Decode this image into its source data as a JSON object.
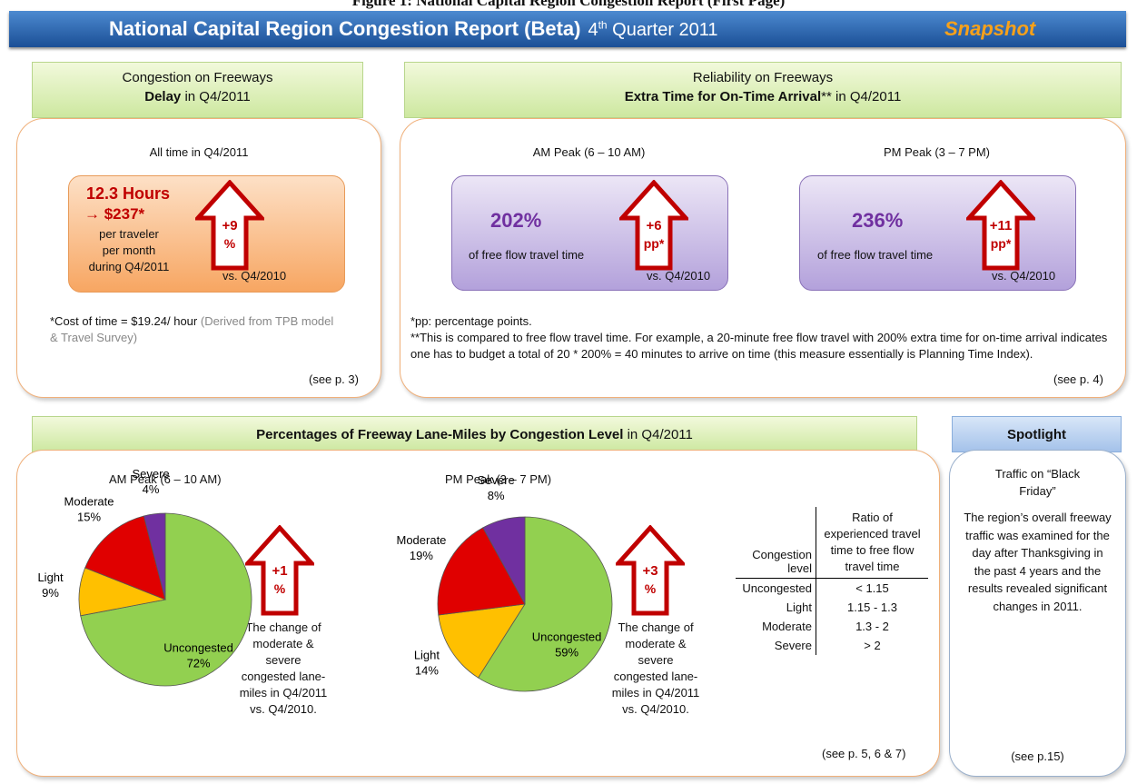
{
  "header": {
    "caption": "Figure 1: National Capital Region Congestion Report (First Page)",
    "title": "National Capital Region Congestion Report (Beta)",
    "quarter_number": "4",
    "quarter_suffix": "th",
    "quarter_rest": "Quarter 2011",
    "tag": "Snapshot"
  },
  "delay": {
    "heading": "Congestion on Freeways",
    "heading_bold": "Delay",
    "heading_rest": "in Q4/2011",
    "subtitle": "All time in Q4/2011",
    "hours": "12.3 Hours",
    "cost": "→ $237*",
    "desc": [
      "per traveler",
      "per month",
      "during Q4/2011"
    ],
    "change": "+9",
    "change_unit": "%",
    "vs": "vs. Q4/2010",
    "note": "*Cost of time = $19.24/ hour",
    "note_source": "(Derived from TPB model & Travel Survey)",
    "ref": "(see p. 3)"
  },
  "reliability": {
    "heading": "Reliability on Freeways",
    "heading_bold": "Extra Time for On-Time Arrival",
    "heading_mark": "**",
    "heading_rest": "in Q4/2011",
    "periods": [
      {
        "label": "AM Peak (6 – 10 AM)",
        "value": "202%",
        "desc": "of free flow travel time",
        "change": "+6",
        "change_unit": "pp*",
        "vs": "vs. Q4/2010"
      },
      {
        "label": "PM Peak (3 – 7 PM)",
        "value": "236%",
        "desc": "of free flow travel time",
        "change": "+11",
        "change_unit": "pp*",
        "vs": "vs. Q4/2010"
      }
    ],
    "notes": [
      "*pp: percentage points.",
      "**This is compared to free flow travel time. For example, a 20-minute free flow travel with 200% extra time for on-time arrival indicates one has to budget a total of 20 * 200% = 40 minutes to arrive on time (this measure essentially is Planning Time Index)."
    ],
    "ref": "(see p. 4)"
  },
  "lane_miles": {
    "heading_bold": "Percentages of Freeway Lane-Miles by Congestion Level",
    "heading_rest": "in Q4/2011",
    "pies": [
      {
        "type": "pie",
        "title": "AM Peak (6 – 10 AM)",
        "categories": [
          "Uncongested",
          "Light",
          "Moderate",
          "Severe"
        ],
        "values": [
          72,
          9,
          15,
          4
        ],
        "value_labels": [
          "72%",
          "9%",
          "15%",
          "4%"
        ],
        "colors": [
          "#92d050",
          "#ffc000",
          "#e00000",
          "#7030a0"
        ],
        "change": "+1",
        "change_unit": "%",
        "change_text": "The change of moderate & severe congested lane-miles in Q4/2011 vs. Q4/2010."
      },
      {
        "type": "pie",
        "title": "PM Peak (3 – 7 PM)",
        "categories": [
          "Uncongested",
          "Light",
          "Moderate",
          "Severe"
        ],
        "values": [
          59,
          14,
          19,
          8
        ],
        "value_labels": [
          "59%",
          "14%",
          "19%",
          "8%"
        ],
        "colors": [
          "#92d050",
          "#ffc000",
          "#e00000",
          "#7030a0"
        ],
        "change": "+3",
        "change_unit": "%",
        "change_text": "The change of moderate & severe congested lane-miles in Q4/2011 vs. Q4/2010."
      }
    ],
    "table": {
      "header": [
        "Congestion level",
        "Ratio of experienced travel time to free flow travel time"
      ],
      "rows": [
        [
          "Uncongested",
          "< 1.15"
        ],
        [
          "Light",
          "1.15 - 1.3"
        ],
        [
          "Moderate",
          "1.3 - 2"
        ],
        [
          "Severe",
          "> 2"
        ]
      ]
    },
    "ref": "(see p. 5, 6 & 7)"
  },
  "spotlight": {
    "heading": "Spotlight",
    "title": "Traffic on “Black Friday”",
    "text": "The region’s overall freeway traffic was examined for the day after Thanksgiving in the past 4 years and the results revealed significant changes in 2011.",
    "ref": "(see p.15)"
  }
}
